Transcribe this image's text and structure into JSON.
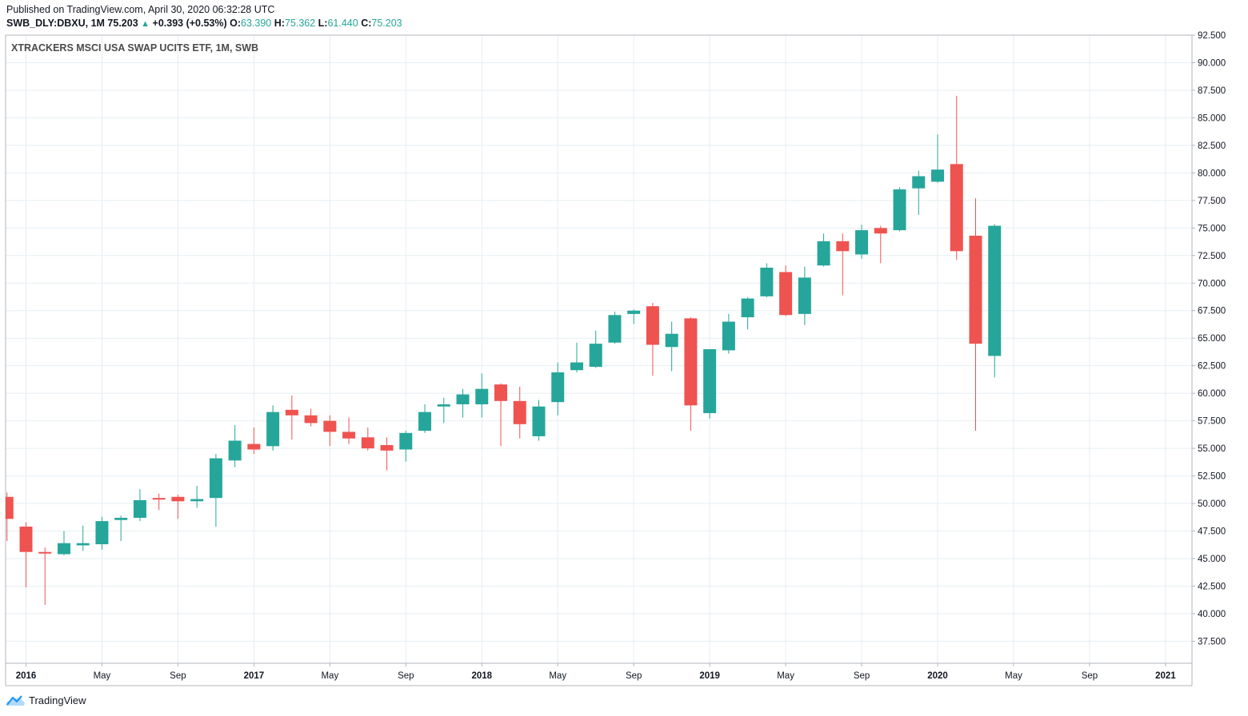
{
  "header": {
    "published": "Published on TradingView.com, April 30, 2020 06:32:28 UTC",
    "symbol": "SWB_DLY:DBXU, 1M",
    "last": "75.203",
    "change": "+0.393 (+0.53%)",
    "o_label": "O:",
    "o_value": "63.390",
    "h_label": "H:",
    "h_value": "75.362",
    "l_label": "L:",
    "l_value": "61.440",
    "c_label": "C:",
    "c_value": "75.203"
  },
  "footer": {
    "brand": "TradingView"
  },
  "colors": {
    "up": "#26a69a",
    "down": "#ef5350",
    "grid": "#e6eef2",
    "text": "#131722"
  },
  "chart_data": {
    "type": "candlestick",
    "title": "XTRACKERS MSCI USA SWAP UCITS ETF, 1M, SWB",
    "interval": "1M",
    "ylim": [
      35.5,
      92.5
    ],
    "y_ticks": [
      "37.500",
      "40.000",
      "42.500",
      "45.000",
      "47.500",
      "50.000",
      "52.500",
      "55.000",
      "57.500",
      "60.000",
      "62.500",
      "65.000",
      "67.500",
      "70.000",
      "72.500",
      "75.000",
      "77.500",
      "80.000",
      "82.500",
      "85.000",
      "87.500",
      "90.000",
      "92.500"
    ],
    "x_ticks": [
      {
        "label": "2016",
        "month": "2016-01",
        "bold": true
      },
      {
        "label": "May",
        "month": "2016-05",
        "bold": false
      },
      {
        "label": "Sep",
        "month": "2016-09",
        "bold": false
      },
      {
        "label": "2017",
        "month": "2017-01",
        "bold": true
      },
      {
        "label": "May",
        "month": "2017-05",
        "bold": false
      },
      {
        "label": "Sep",
        "month": "2017-09",
        "bold": false
      },
      {
        "label": "2018",
        "month": "2018-01",
        "bold": true
      },
      {
        "label": "May",
        "month": "2018-05",
        "bold": false
      },
      {
        "label": "Sep",
        "month": "2018-09",
        "bold": false
      },
      {
        "label": "2019",
        "month": "2019-01",
        "bold": true
      },
      {
        "label": "May",
        "month": "2019-05",
        "bold": false
      },
      {
        "label": "Sep",
        "month": "2019-09",
        "bold": false
      },
      {
        "label": "2020",
        "month": "2020-01",
        "bold": true
      },
      {
        "label": "May",
        "month": "2020-05",
        "bold": false
      },
      {
        "label": "Sep",
        "month": "2020-09",
        "bold": false
      },
      {
        "label": "2021",
        "month": "2021-01",
        "bold": true
      }
    ],
    "candles": [
      {
        "month": "2015-12",
        "o": 50.6,
        "h": 51.0,
        "l": 46.6,
        "c": 48.6
      },
      {
        "month": "2016-01",
        "o": 47.9,
        "h": 48.3,
        "l": 42.4,
        "c": 45.6
      },
      {
        "month": "2016-02",
        "o": 45.6,
        "h": 46.0,
        "l": 40.8,
        "c": 45.5
      },
      {
        "month": "2016-03",
        "o": 45.4,
        "h": 47.5,
        "l": 45.3,
        "c": 46.4
      },
      {
        "month": "2016-04",
        "o": 46.2,
        "h": 48.0,
        "l": 45.7,
        "c": 46.4
      },
      {
        "month": "2016-05",
        "o": 46.3,
        "h": 48.8,
        "l": 45.8,
        "c": 48.4
      },
      {
        "month": "2016-06",
        "o": 48.5,
        "h": 48.9,
        "l": 46.6,
        "c": 48.7
      },
      {
        "month": "2016-07",
        "o": 48.7,
        "h": 51.3,
        "l": 48.4,
        "c": 50.3
      },
      {
        "month": "2016-08",
        "o": 50.5,
        "h": 50.9,
        "l": 49.4,
        "c": 50.4
      },
      {
        "month": "2016-09",
        "o": 50.6,
        "h": 50.8,
        "l": 48.6,
        "c": 50.2
      },
      {
        "month": "2016-10",
        "o": 50.2,
        "h": 51.6,
        "l": 49.6,
        "c": 50.4
      },
      {
        "month": "2016-11",
        "o": 50.5,
        "h": 54.5,
        "l": 47.9,
        "c": 54.1
      },
      {
        "month": "2016-12",
        "o": 53.9,
        "h": 57.1,
        "l": 53.3,
        "c": 55.7
      },
      {
        "month": "2017-01",
        "o": 55.4,
        "h": 56.9,
        "l": 54.5,
        "c": 54.9
      },
      {
        "month": "2017-02",
        "o": 55.2,
        "h": 58.9,
        "l": 54.8,
        "c": 58.3
      },
      {
        "month": "2017-03",
        "o": 58.5,
        "h": 59.8,
        "l": 55.8,
        "c": 58.0
      },
      {
        "month": "2017-04",
        "o": 58.0,
        "h": 58.6,
        "l": 57.0,
        "c": 57.3
      },
      {
        "month": "2017-05",
        "o": 57.5,
        "h": 58.0,
        "l": 55.2,
        "c": 56.5
      },
      {
        "month": "2017-06",
        "o": 56.5,
        "h": 57.8,
        "l": 55.4,
        "c": 55.9
      },
      {
        "month": "2017-07",
        "o": 56.0,
        "h": 56.9,
        "l": 54.8,
        "c": 55.0
      },
      {
        "month": "2017-08",
        "o": 55.3,
        "h": 56.0,
        "l": 53.0,
        "c": 54.8
      },
      {
        "month": "2017-09",
        "o": 54.9,
        "h": 56.6,
        "l": 53.8,
        "c": 56.4
      },
      {
        "month": "2017-10",
        "o": 56.6,
        "h": 59.0,
        "l": 56.4,
        "c": 58.3
      },
      {
        "month": "2017-11",
        "o": 58.8,
        "h": 59.6,
        "l": 57.3,
        "c": 59.0
      },
      {
        "month": "2017-12",
        "o": 59.0,
        "h": 60.4,
        "l": 57.8,
        "c": 59.9
      },
      {
        "month": "2018-01",
        "o": 59.0,
        "h": 61.8,
        "l": 57.8,
        "c": 60.4
      },
      {
        "month": "2018-02",
        "o": 60.8,
        "h": 60.9,
        "l": 55.2,
        "c": 59.3
      },
      {
        "month": "2018-03",
        "o": 59.3,
        "h": 60.6,
        "l": 55.9,
        "c": 57.2
      },
      {
        "month": "2018-04",
        "o": 56.1,
        "h": 59.4,
        "l": 55.7,
        "c": 58.8
      },
      {
        "month": "2018-05",
        "o": 59.2,
        "h": 62.8,
        "l": 58.0,
        "c": 61.9
      },
      {
        "month": "2018-06",
        "o": 62.1,
        "h": 64.6,
        "l": 61.9,
        "c": 62.8
      },
      {
        "month": "2018-07",
        "o": 62.4,
        "h": 65.7,
        "l": 62.3,
        "c": 64.5
      },
      {
        "month": "2018-08",
        "o": 64.6,
        "h": 67.4,
        "l": 64.5,
        "c": 67.1
      },
      {
        "month": "2018-09",
        "o": 67.2,
        "h": 67.6,
        "l": 66.3,
        "c": 67.5
      },
      {
        "month": "2018-10",
        "o": 67.9,
        "h": 68.2,
        "l": 61.6,
        "c": 64.4
      },
      {
        "month": "2018-11",
        "o": 64.2,
        "h": 66.5,
        "l": 62.0,
        "c": 65.4
      },
      {
        "month": "2018-12",
        "o": 66.8,
        "h": 66.9,
        "l": 56.6,
        "c": 58.9
      },
      {
        "month": "2019-01",
        "o": 58.2,
        "h": 64.0,
        "l": 57.7,
        "c": 64.0
      },
      {
        "month": "2019-02",
        "o": 63.9,
        "h": 67.2,
        "l": 63.6,
        "c": 66.5
      },
      {
        "month": "2019-03",
        "o": 66.9,
        "h": 68.7,
        "l": 65.8,
        "c": 68.6
      },
      {
        "month": "2019-04",
        "o": 68.8,
        "h": 71.8,
        "l": 68.7,
        "c": 71.4
      },
      {
        "month": "2019-05",
        "o": 71.0,
        "h": 71.6,
        "l": 67.0,
        "c": 67.1
      },
      {
        "month": "2019-06",
        "o": 67.2,
        "h": 71.5,
        "l": 66.2,
        "c": 70.5
      },
      {
        "month": "2019-07",
        "o": 71.6,
        "h": 74.5,
        "l": 71.5,
        "c": 73.8
      },
      {
        "month": "2019-08",
        "o": 73.8,
        "h": 74.5,
        "l": 68.9,
        "c": 72.9
      },
      {
        "month": "2019-09",
        "o": 72.6,
        "h": 75.3,
        "l": 72.2,
        "c": 74.8
      },
      {
        "month": "2019-10",
        "o": 75.0,
        "h": 75.2,
        "l": 71.8,
        "c": 74.5
      },
      {
        "month": "2019-11",
        "o": 74.8,
        "h": 78.7,
        "l": 74.7,
        "c": 78.5
      },
      {
        "month": "2019-12",
        "o": 78.6,
        "h": 80.2,
        "l": 76.2,
        "c": 79.7
      },
      {
        "month": "2020-01",
        "o": 79.2,
        "h": 83.5,
        "l": 79.1,
        "c": 80.3
      },
      {
        "month": "2020-02",
        "o": 80.8,
        "h": 87.0,
        "l": 72.1,
        "c": 72.9
      },
      {
        "month": "2020-03",
        "o": 74.3,
        "h": 77.7,
        "l": 56.6,
        "c": 64.5
      },
      {
        "month": "2020-04",
        "o": 63.39,
        "h": 75.362,
        "l": 61.44,
        "c": 75.203
      }
    ]
  }
}
